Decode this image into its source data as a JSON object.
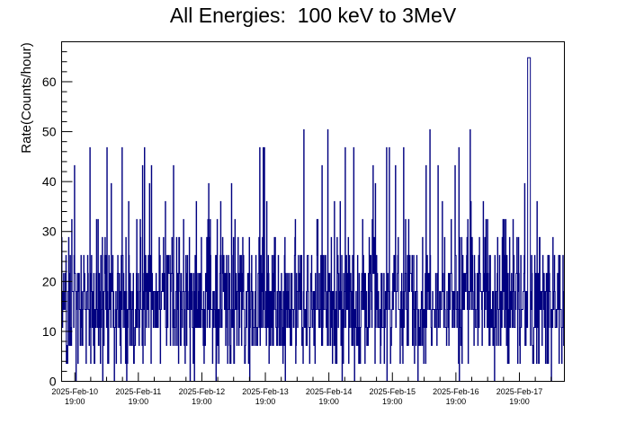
{
  "chart_data": {
    "type": "line",
    "title": "All Energies:  100 keV to 3MeV",
    "ylabel": "Rate(Counts/hour)",
    "xlabel": "",
    "ylim": [
      0,
      68
    ],
    "yticks_major": [
      0,
      10,
      20,
      30,
      40,
      50,
      60
    ],
    "xlim_hours": [
      0,
      190
    ],
    "x_tick_labels": [
      {
        "date": "2025-Feb-10",
        "time": "19:00"
      },
      {
        "date": "2025-Feb-11",
        "time": "19:00"
      },
      {
        "date": "2025-Feb-12",
        "time": "19:00"
      },
      {
        "date": "2025-Feb-13",
        "time": "19:00"
      },
      {
        "date": "2025-Feb-14",
        "time": "19:00"
      },
      {
        "date": "2025-Feb-15",
        "time": "19:00"
      },
      {
        "date": "2025-Feb-16",
        "time": "19:00"
      },
      {
        "date": "2025-Feb-17",
        "time": "19:00"
      }
    ],
    "quantized_levels": [
      0,
      3.6,
      7.2,
      10.8,
      14.4,
      18,
      21.6,
      25.2,
      28.8,
      36,
      43.2,
      50.4,
      57.6,
      64.8
    ],
    "line_color": "#000080",
    "grid": false,
    "legend": "none"
  }
}
